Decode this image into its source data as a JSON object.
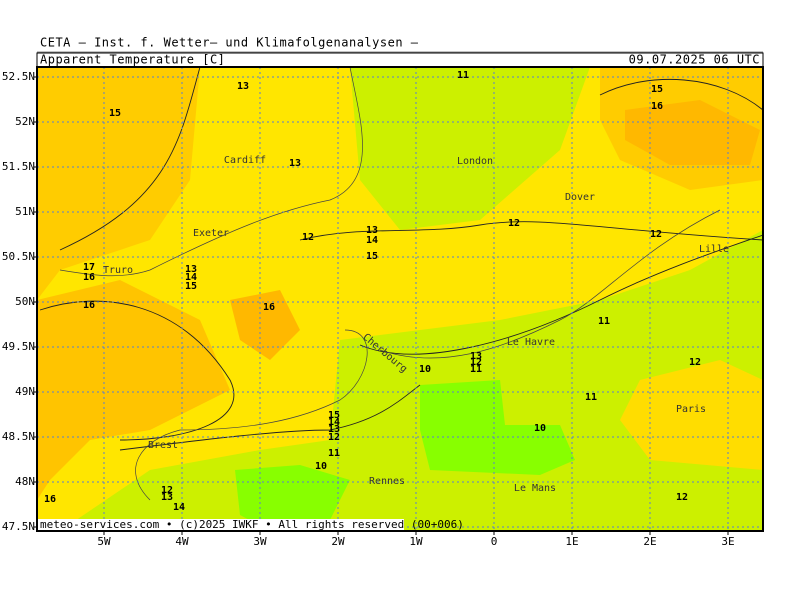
{
  "header": {
    "institute": "CETA — Inst. f. Wetter— und Klimafolgenanalysen —",
    "variable": "Apparent_Temperature [C]",
    "valid_time": "09.07.2025 06 UTC"
  },
  "footer": "meteo-services.com • (c)2025 IWKF • All rights reserved (00+006)",
  "lat_ticks": [
    {
      "value": 52.5,
      "label": "52.5N"
    },
    {
      "value": 52,
      "label": "52N"
    },
    {
      "value": 51.5,
      "label": "51.5N"
    },
    {
      "value": 51,
      "label": "51N"
    },
    {
      "value": 50.5,
      "label": "50.5N"
    },
    {
      "value": 50,
      "label": "50N"
    },
    {
      "value": 49.5,
      "label": "49.5N"
    },
    {
      "value": 49,
      "label": "49N"
    },
    {
      "value": 48.5,
      "label": "48.5N"
    },
    {
      "value": 48,
      "label": "48N"
    },
    {
      "value": 47.5,
      "label": "47.5N"
    }
  ],
  "lon_ticks": [
    {
      "value": -5,
      "label": "5W"
    },
    {
      "value": -4,
      "label": "4W"
    },
    {
      "value": -3,
      "label": "3W"
    },
    {
      "value": -2,
      "label": "2W"
    },
    {
      "value": -1,
      "label": "1W"
    },
    0,
    {
      "value": 1,
      "label": "1E"
    },
    {
      "value": 2,
      "label": "2E"
    },
    {
      "value": 3,
      "label": "3E"
    }
  ],
  "places": [
    "Cardiff",
    "London",
    "Dover",
    "Exeter",
    "Truro",
    "Lille",
    "Le Havre",
    "Cherbourg",
    "Paris",
    "Brest",
    "Rennes",
    "Le Mans"
  ],
  "contour_labels": [
    11,
    13,
    15,
    15,
    16,
    13,
    12,
    12,
    12,
    13,
    14,
    15,
    17,
    16,
    13,
    14,
    15,
    16,
    16,
    11,
    13,
    12,
    11,
    10,
    12,
    11,
    10,
    15,
    14,
    13,
    12,
    11,
    10,
    12,
    13,
    14,
    16,
    12
  ]
}
